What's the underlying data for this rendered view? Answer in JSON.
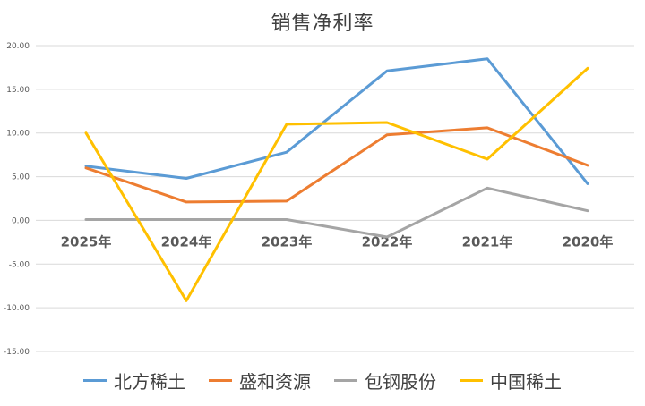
{
  "chart_data": {
    "type": "line",
    "title": "销售净利率",
    "categories": [
      "2025年",
      "2024年",
      "2023年",
      "2022年",
      "2021年",
      "2020年"
    ],
    "y_ticks": [
      "20.00",
      "15.00",
      "10.00",
      "5.00",
      "0.00",
      "-5.00",
      "-10.00",
      "-15.00"
    ],
    "ylim": [
      -15,
      20
    ],
    "grid": true,
    "legend_position": "bottom",
    "series": [
      {
        "name": "北方稀土",
        "color": "#5B9BD5",
        "values": [
          6.2,
          4.8,
          7.8,
          17.1,
          18.5,
          4.2
        ]
      },
      {
        "name": "盛和资源",
        "color": "#ED7D31",
        "values": [
          6.0,
          2.1,
          2.2,
          9.8,
          10.6,
          6.3
        ]
      },
      {
        "name": "包钢股份",
        "color": "#A5A5A5",
        "values": [
          0.1,
          0.1,
          0.1,
          -1.9,
          3.7,
          1.1
        ]
      },
      {
        "name": "中国稀土",
        "color": "#FFC000",
        "values": [
          10.0,
          -9.2,
          11.0,
          11.2,
          7.0,
          17.4
        ]
      }
    ]
  }
}
